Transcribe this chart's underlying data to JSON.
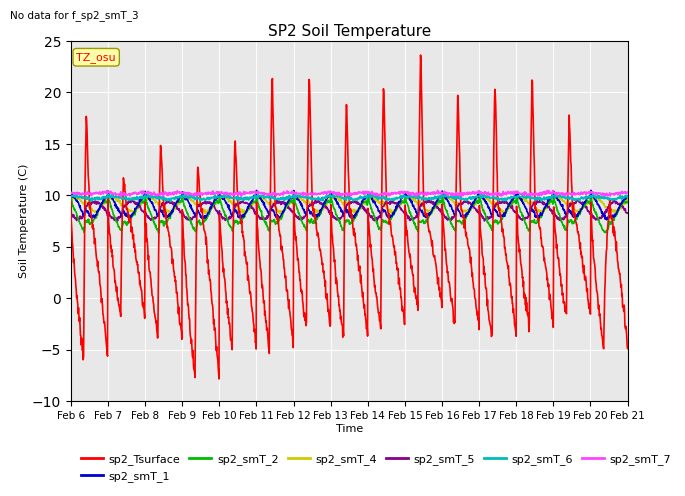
{
  "title": "SP2 Soil Temperature",
  "subtitle": "No data for f_sp2_smT_3",
  "xlabel": "Time",
  "ylabel": "Soil Temperature (C)",
  "ylim": [
    -10,
    25
  ],
  "tz_label": "TZ_osu",
  "background_color": "#ffffff",
  "plot_bg_color": "#e8e8e8",
  "x_tick_labels": [
    "Feb 6",
    "Feb 7",
    "Feb 8",
    "Feb 9",
    "Feb 10",
    "Feb 11",
    "Feb 12",
    "Feb 13",
    "Feb 14",
    "Feb 15",
    "Feb 16",
    "Feb 17",
    "Feb 18",
    "Feb 19",
    "Feb 20",
    "Feb 21"
  ],
  "legend": [
    {
      "label": "sp2_Tsurface",
      "color": "#ff0000",
      "lw": 1.2
    },
    {
      "label": "sp2_smT_1",
      "color": "#0000cc",
      "lw": 1.2
    },
    {
      "label": "sp2_smT_2",
      "color": "#00bb00",
      "lw": 1.2
    },
    {
      "label": "sp2_smT_4",
      "color": "#cccc00",
      "lw": 1.2
    },
    {
      "label": "sp2_smT_5",
      "color": "#880088",
      "lw": 1.2
    },
    {
      "label": "sp2_smT_6",
      "color": "#00bbbb",
      "lw": 1.2
    },
    {
      "label": "sp2_smT_7",
      "color": "#ff44ff",
      "lw": 1.2
    }
  ]
}
